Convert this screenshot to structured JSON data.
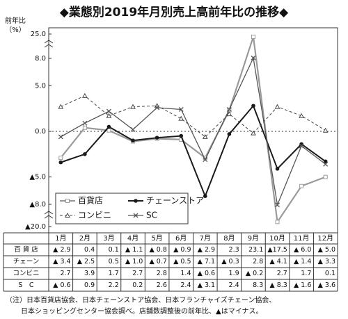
{
  "chart_data": {
    "type": "line",
    "title": "◆業態別2019年月別売上高前年比の推移◆",
    "y_label": [
      "前年比",
      "（%）"
    ],
    "categories": [
      "1月",
      "2月",
      "3月",
      "4月",
      "5月",
      "6月",
      "7月",
      "8月",
      "9月",
      "10月",
      "11月",
      "12月"
    ],
    "ylim": [
      -20,
      25
    ],
    "yticks": [
      {
        "value": 25,
        "label": "25.0"
      },
      {
        "value": 8,
        "label": "8.0"
      },
      {
        "value": 5,
        "label": "5.0"
      },
      {
        "value": 0,
        "label": "0.0"
      },
      {
        "value": -5,
        "label": "▲5.0"
      },
      {
        "value": -8,
        "label": "▲8.0"
      },
      {
        "value": -20,
        "label": "▲20.0"
      }
    ],
    "legend": "lower left",
    "series": [
      {
        "name": "百貨店",
        "row_label": "百 貨 店",
        "color": "#9a9a9a",
        "marker": "square",
        "dash": "none",
        "values": [
          -2.9,
          0.4,
          0.1,
          -1.1,
          -0.8,
          -0.9,
          -2.9,
          2.3,
          23.1,
          -17.5,
          -6.0,
          -5.0
        ],
        "value_labels": [
          "▲ 2.9",
          "0.4",
          "0.1",
          "▲ 1.1",
          "▲ 0.8",
          "▲ 0.9",
          "▲ 2.9",
          "2.3",
          "23.1",
          "▲17.5",
          "▲ 6.0",
          "▲ 5.0"
        ]
      },
      {
        "name": "チェーンストア",
        "row_label": "チェーン",
        "color": "#1a1a1a",
        "marker": "circle",
        "dash": "none",
        "values": [
          -3.4,
          -2.5,
          0.5,
          -1.0,
          -0.7,
          -0.5,
          -7.1,
          -0.3,
          2.8,
          -4.1,
          -1.4,
          -3.3
        ],
        "value_labels": [
          "▲ 3.4",
          "▲ 2.5",
          "0.5",
          "▲ 1.0",
          "▲ 0.7",
          "▲ 0.5",
          "▲ 7.1",
          "▲ 0.3",
          "2.8",
          "▲ 4.1",
          "▲ 1.4",
          "▲ 3.3"
        ]
      },
      {
        "name": "コンビニ",
        "row_label": "コンビニ",
        "color": "#444444",
        "marker": "triangle",
        "dash": "4,3",
        "values": [
          2.7,
          3.9,
          1.7,
          2.7,
          2.8,
          1.4,
          -0.6,
          1.9,
          -0.2,
          2.7,
          1.7,
          0.1
        ],
        "value_labels": [
          "2.7",
          "3.9",
          "1.7",
          "2.7",
          "2.8",
          "1.4",
          "▲ 0.6",
          "1.9",
          "▲ 0.2",
          "2.7",
          "1.7",
          "0.1"
        ]
      },
      {
        "name": "SC",
        "row_label": "S　C",
        "color": "#555555",
        "marker": "x",
        "dash": "none",
        "values": [
          -0.6,
          0.9,
          2.2,
          0.2,
          2.6,
          2.4,
          -3.1,
          2.4,
          8.3,
          -8.3,
          -1.6,
          -3.6
        ],
        "value_labels": [
          "▲ 0.6",
          "0.9",
          "2.2",
          "0.2",
          "2.6",
          "2.4",
          "▲ 3.1",
          "2.4",
          "8.3",
          "▲ 8.3",
          "▲ 1.6",
          "▲ 3.6"
        ]
      }
    ],
    "notes": [
      "（注）日本百貨店協会、日本チェーンストア協会、日本フランチャイズチェーン協会、",
      "日本ショッピングセンター協会調べ。店舗数調整後の前年比、▲はマイナス。"
    ]
  }
}
